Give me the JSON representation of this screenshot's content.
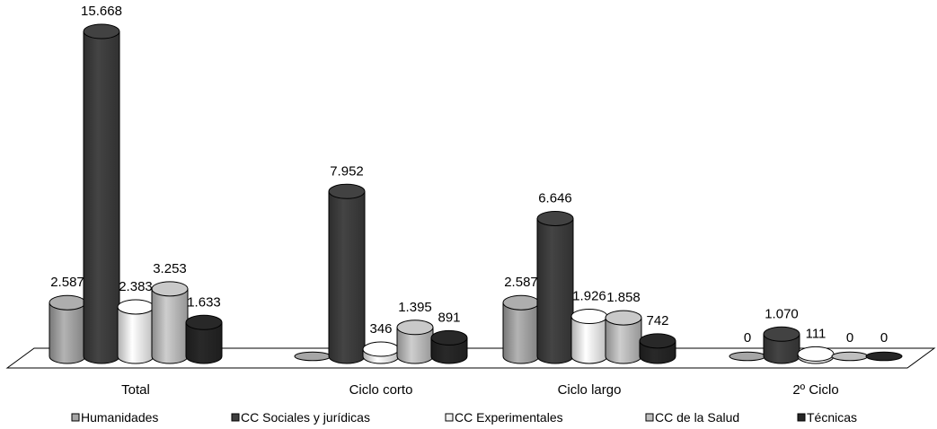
{
  "chart_data": {
    "type": "bar",
    "categories": [
      "Total",
      "Ciclo corto",
      "Ciclo largo",
      "2º Ciclo"
    ],
    "series": [
      {
        "name": "Humanidades",
        "values": [
          2587,
          0,
          2587,
          0
        ],
        "labels": [
          "2.587",
          "",
          "2.587",
          "0"
        ],
        "color": "#a6a6a6"
      },
      {
        "name": "CC Sociales y jurídicas",
        "values": [
          15668,
          7952,
          6646,
          1070
        ],
        "labels": [
          "15.668",
          "7.952",
          "6.646",
          "1.070"
        ],
        "color": "#3f3f3f"
      },
      {
        "name": "CC Experimentales",
        "values": [
          2383,
          346,
          1926,
          111
        ],
        "labels": [
          "2.383",
          "346",
          "1.926",
          "111"
        ],
        "color": "#f2f2f2"
      },
      {
        "name": "CC de la Salud",
        "values": [
          3253,
          1395,
          1858,
          0
        ],
        "labels": [
          "3.253",
          "1.395",
          "1.858",
          "0"
        ],
        "color": "#bfbfbf"
      },
      {
        "name": "Técnicas",
        "values": [
          1633,
          891,
          742,
          0
        ],
        "labels": [
          "1.633",
          "891",
          "742",
          "0"
        ],
        "color": "#262626"
      }
    ],
    "ylim": [
      0,
      15668
    ],
    "legend_position": "bottom",
    "grid": false
  }
}
